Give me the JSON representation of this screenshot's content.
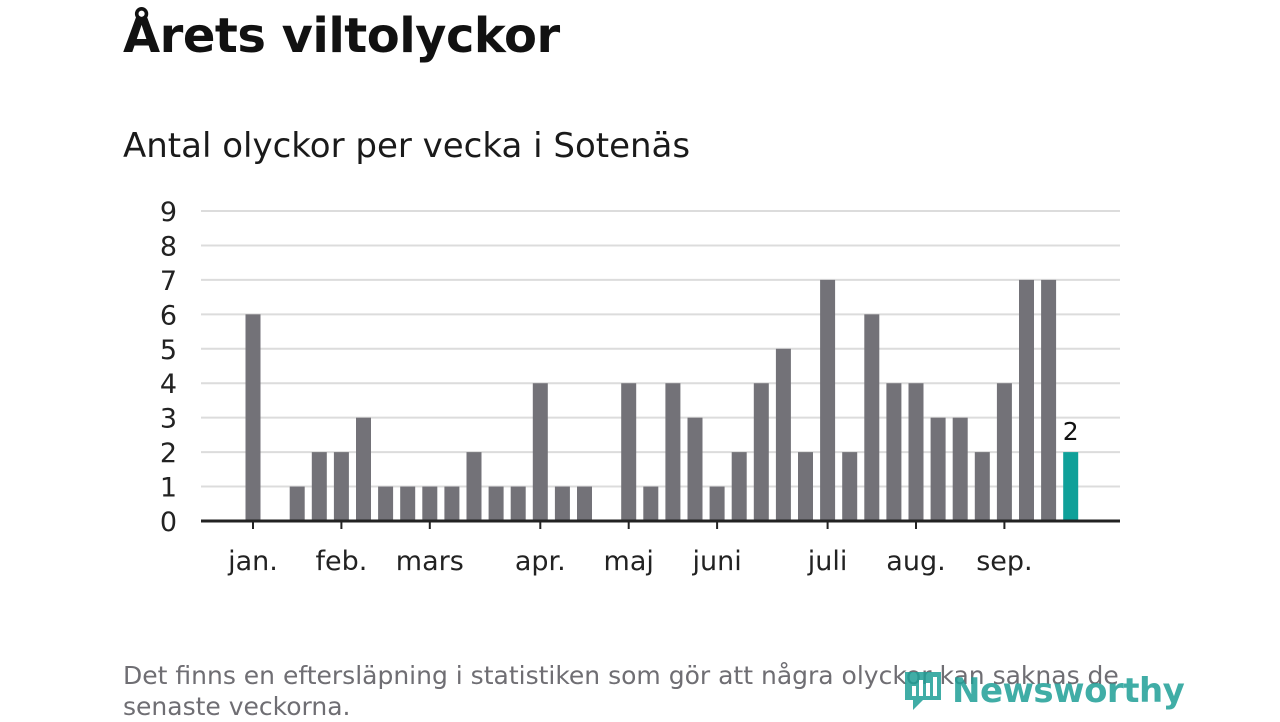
{
  "header": {
    "title": "Årets viltolyckor",
    "subtitle": "Antal olyckor per vecka i Sotenäs"
  },
  "footnote": "Det finns en eftersläpning i statistiken som gör att några olyckor kan saknas de senaste veckorna.",
  "brand": {
    "name": "Newsworthy",
    "logo_icon": "newsworthy-logo-icon"
  },
  "colors": {
    "bar": "#737278",
    "highlight": "#0fa099",
    "grid": "#dcdcdc",
    "axis": "#222222",
    "text": "#222222"
  },
  "chart_data": {
    "type": "bar",
    "title": "Antal olyckor per vecka i Sotenäs",
    "xlabel": "",
    "ylabel": "",
    "ylim": [
      0,
      9
    ],
    "yticks": [
      "0",
      "1",
      "2",
      "3",
      "4",
      "5",
      "6",
      "7",
      "8",
      "9"
    ],
    "grid": true,
    "weeks": [
      1,
      2,
      3,
      4,
      5,
      6,
      7,
      8,
      9,
      10,
      11,
      12,
      13,
      14,
      15,
      16,
      17,
      18,
      19,
      20,
      21,
      22,
      23,
      24,
      25,
      26,
      27,
      28,
      29,
      30,
      31,
      32,
      33,
      34,
      35,
      36,
      37,
      38
    ],
    "values": [
      6,
      0,
      1,
      2,
      2,
      3,
      1,
      1,
      1,
      1,
      2,
      1,
      1,
      4,
      1,
      1,
      0,
      4,
      1,
      4,
      3,
      1,
      2,
      4,
      5,
      2,
      7,
      2,
      6,
      4,
      4,
      3,
      3,
      2,
      4,
      7,
      7,
      2
    ],
    "highlight_index": 37,
    "highlight_label": "2",
    "month_labels": [
      {
        "label": "jan.",
        "week": 1
      },
      {
        "label": "feb.",
        "week": 5
      },
      {
        "label": "mars",
        "week": 9
      },
      {
        "label": "apr.",
        "week": 14
      },
      {
        "label": "maj",
        "week": 18
      },
      {
        "label": "juni",
        "week": 22
      },
      {
        "label": "juli",
        "week": 27
      },
      {
        "label": "aug.",
        "week": 31
      },
      {
        "label": "sep.",
        "week": 35
      }
    ]
  }
}
